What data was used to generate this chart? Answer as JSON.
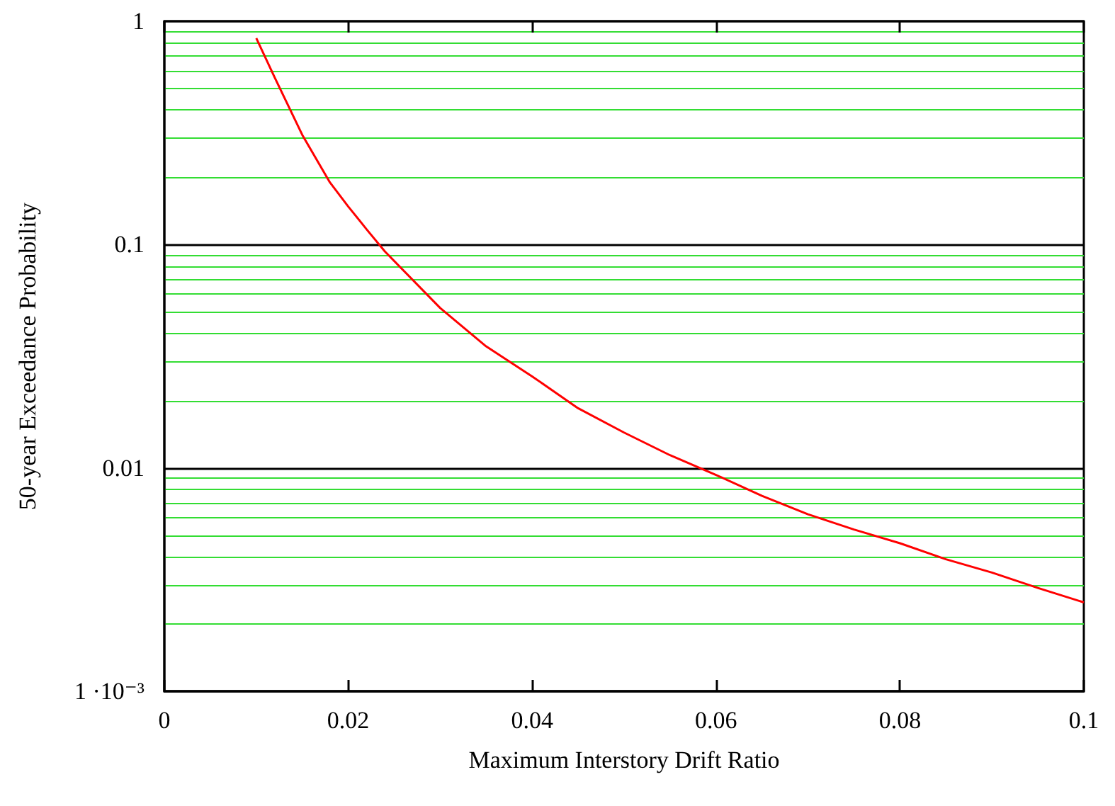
{
  "chart_data": {
    "type": "line",
    "xlabel": "Maximum Interstory Drift Ratio",
    "ylabel": "50-year Exceedance Probability",
    "x": [
      0.01,
      0.012,
      0.015,
      0.018,
      0.02,
      0.022,
      0.024,
      0.03,
      0.035,
      0.04,
      0.045,
      0.05,
      0.055,
      0.06,
      0.065,
      0.07,
      0.075,
      0.08,
      0.085,
      0.09,
      0.095,
      0.1
    ],
    "series": [
      {
        "color": "#ff0000",
        "values": [
          0.84,
          0.56,
          0.31,
          0.19,
          0.148,
          0.117,
          0.093,
          0.052,
          0.035,
          0.0257,
          0.0185,
          0.0144,
          0.0114,
          0.0093,
          0.0075,
          0.0062,
          0.0053,
          0.0046,
          0.0039,
          0.0034,
          0.0029,
          0.0025
        ]
      }
    ],
    "xlim": [
      0,
      0.1
    ],
    "xticks": [
      0,
      0.02,
      0.04,
      0.06,
      0.08,
      0.1
    ],
    "ylim": [
      0.001,
      1
    ],
    "yticks": [
      {
        "value": 0.001,
        "label": "1 ·10⁻³"
      },
      {
        "value": 0.002,
        "label": null
      },
      {
        "value": 0.003,
        "label": null
      },
      {
        "value": 0.004,
        "label": null
      },
      {
        "value": 0.005,
        "label": null
      },
      {
        "value": 0.006,
        "label": null
      },
      {
        "value": 0.007,
        "label": null
      },
      {
        "value": 0.008,
        "label": null
      },
      {
        "value": 0.009,
        "label": null
      },
      0.01,
      {
        "value": 0.02,
        "label": null
      },
      {
        "value": 0.03,
        "label": null
      },
      {
        "value": 0.04,
        "label": null
      },
      {
        "value": 0.05,
        "label": null
      },
      {
        "value": 0.06,
        "label": null
      },
      {
        "value": 0.07,
        "label": null
      },
      {
        "value": 0.08,
        "label": null
      },
      {
        "value": 0.09,
        "label": null
      },
      0.1,
      {
        "value": 0.2,
        "label": null
      },
      {
        "value": 0.3,
        "label": null
      },
      {
        "value": 0.4,
        "label": null
      },
      {
        "value": 0.5,
        "label": null
      },
      {
        "value": 0.6,
        "label": null
      },
      {
        "value": 0.7,
        "label": null
      },
      {
        "value": 0.8,
        "label": null
      },
      {
        "value": 0.9,
        "label": null
      },
      1
    ],
    "log": "y",
    "grid": "y",
    "marker": "none",
    "line_style": "solid"
  }
}
